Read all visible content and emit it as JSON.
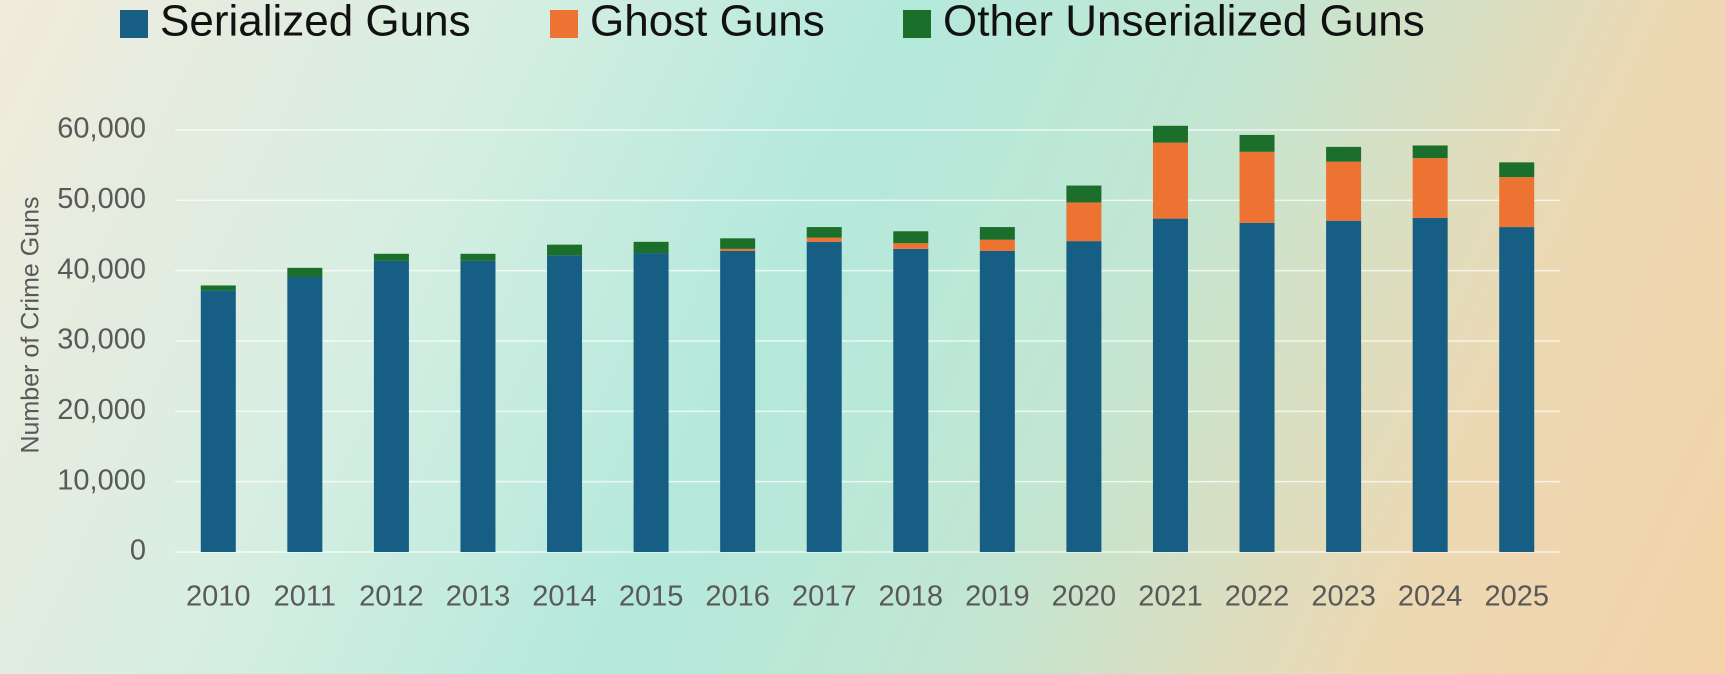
{
  "chart_data": {
    "type": "stacked_bar",
    "y_label": "Number of Crime Guns",
    "categories": [
      "2010",
      "2011",
      "2012",
      "2013",
      "2014",
      "2015",
      "2016",
      "2017",
      "2018",
      "2019",
      "2020",
      "2021",
      "2022",
      "2023",
      "2024",
      "2025"
    ],
    "series": [
      {
        "name": "Serialized Guns",
        "color": "#165e84",
        "values": [
          37200,
          39100,
          41400,
          41400,
          42200,
          42500,
          42800,
          44100,
          43100,
          42800,
          44200,
          47400,
          46800,
          47100,
          47500,
          46200
        ]
      },
      {
        "name": "Ghost Guns",
        "color": "#ed7333",
        "values": [
          0,
          0,
          0,
          0,
          0,
          0,
          300,
          600,
          800,
          1600,
          5500,
          10800,
          10100,
          8400,
          8500,
          7100
        ]
      },
      {
        "name": "Other Unserialized Guns",
        "color": "#1b6f2a",
        "values": [
          700,
          1300,
          1000,
          1000,
          1500,
          1600,
          1500,
          1500,
          1700,
          1800,
          2400,
          2400,
          2400,
          2100,
          1800,
          2100
        ]
      }
    ],
    "ylim": [
      0,
      60000
    ],
    "yticks": [
      0,
      {
        "value": 10000,
        "label": "10,000"
      },
      {
        "value": 20000,
        "label": "20,000"
      },
      {
        "value": 30000,
        "label": "30,000"
      },
      {
        "value": 40000,
        "label": "40,000"
      },
      {
        "value": 50000,
        "label": "50,000"
      },
      {
        "value": 60000,
        "label": "60,000"
      }
    ],
    "grid": true
  }
}
